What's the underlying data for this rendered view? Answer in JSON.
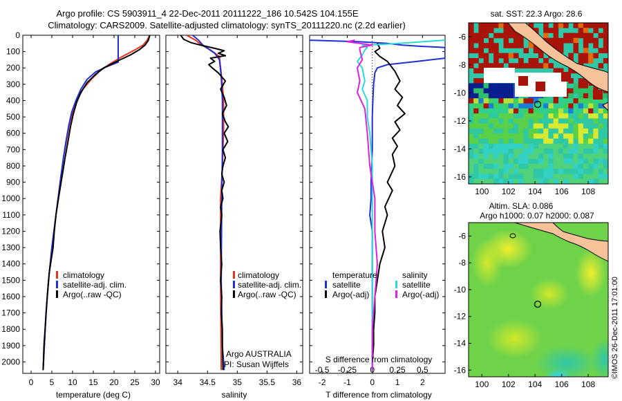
{
  "title": {
    "line1": "Argo profile: CS 5903911_4 22-Dec-2011 20111222_186 10.542S 104.155E",
    "line2": "Climatology: CARS2009. Satellite-adjusted climatology: synTS_20111220.nc (2.2d earlier)"
  },
  "colors": {
    "climatology": "#e8311e",
    "satellite": "#1f2fd6",
    "argo": "#000000",
    "sat_salinity": "#2ad8d8",
    "argo_salinity": "#e020e0",
    "land": "#f5c29a"
  },
  "chart_data": [
    {
      "type": "line",
      "xlabel": "temperature (deg C)",
      "ylabel": "",
      "xlim": [
        -2,
        31
      ],
      "ylim": [
        2070,
        0
      ],
      "xticks": [
        0,
        5,
        10,
        15,
        20,
        25,
        30
      ],
      "yticks": [
        0,
        100,
        200,
        300,
        400,
        500,
        600,
        700,
        800,
        900,
        1000,
        1100,
        1200,
        1300,
        1400,
        1500,
        1600,
        1700,
        1800,
        1900,
        2000
      ],
      "legend": [
        "climatology",
        "satellite-adj. clim.",
        "Argo(..raw -QC)"
      ],
      "legend_position": "lower-center",
      "series": [
        {
          "name": "climatology",
          "color": "climatology",
          "points": [
            [
              28.6,
              0
            ],
            [
              28,
              30
            ],
            [
              27,
              60
            ],
            [
              25,
              90
            ],
            [
              22,
              130
            ],
            [
              19,
              175
            ],
            [
              16.5,
              220
            ],
            [
              14.5,
              270
            ],
            [
              12.5,
              330
            ],
            [
              11,
              400
            ],
            [
              10,
              470
            ],
            [
              9.2,
              550
            ],
            [
              8.5,
              650
            ],
            [
              7.8,
              750
            ],
            [
              7,
              900
            ],
            [
              6,
              1100
            ],
            [
              5,
              1300
            ],
            [
              4.2,
              1500
            ],
            [
              3.6,
              1700
            ],
            [
              3.2,
              1900
            ],
            [
              2.9,
              2050
            ]
          ]
        },
        {
          "name": "satellite-adj. clim.",
          "color": "satellite",
          "points": [
            [
              21,
              0
            ],
            [
              21,
              165
            ],
            [
              18,
              195
            ],
            [
              15.5,
              225
            ],
            [
              13.5,
              270
            ],
            [
              12,
              330
            ],
            [
              10.8,
              400
            ],
            [
              9.8,
              470
            ],
            [
              9.1,
              550
            ],
            [
              8.4,
              650
            ],
            [
              7.8,
              750
            ],
            [
              7,
              900
            ],
            [
              6,
              1100
            ],
            [
              5,
              1300
            ],
            [
              4.2,
              1500
            ],
            [
              3.6,
              1700
            ],
            [
              3.2,
              1900
            ],
            [
              2.9,
              2050
            ]
          ]
        },
        {
          "name": "Argo(..raw -QC)",
          "color": "argo",
          "points": [
            [
              28.6,
              0
            ],
            [
              28.3,
              30
            ],
            [
              27.5,
              60
            ],
            [
              26,
              90
            ],
            [
              24,
              120
            ],
            [
              21.5,
              150
            ],
            [
              19.5,
              175
            ],
            [
              17.5,
              200
            ],
            [
              15.5,
              240
            ],
            [
              13.5,
              290
            ],
            [
              12,
              350
            ],
            [
              11,
              410
            ],
            [
              10.2,
              480
            ],
            [
              9.5,
              560
            ],
            [
              8.9,
              650
            ],
            [
              8.2,
              750
            ],
            [
              7.5,
              860
            ],
            [
              6.6,
              1000
            ],
            [
              6,
              1100
            ],
            [
              5.6,
              1200
            ],
            [
              5.3,
              1300
            ],
            [
              4.4,
              1450
            ],
            [
              3.9,
              1600
            ],
            [
              3.5,
              1750
            ],
            [
              3.1,
              1900
            ],
            [
              2.9,
              2050
            ]
          ]
        }
      ]
    },
    {
      "type": "line",
      "xlabel": "salinity",
      "xlim": [
        33.8,
        36.1
      ],
      "ylim": [
        2070,
        0
      ],
      "xticks": [
        34,
        34.5,
        35,
        35.5,
        36
      ],
      "xtick_labels": [
        "34",
        "34.5",
        "35",
        "35.5",
        "36"
      ],
      "legend": [
        "climatology",
        "satellite-adj. clim.",
        "Argo(..raw -QC)"
      ],
      "legend_position": "lower-right",
      "annotations": [
        "Argo AUSTRALIA",
        "PI: Susan Wijffels"
      ],
      "series": [
        {
          "name": "climatology",
          "color": "climatology",
          "points": [
            [
              34.15,
              0
            ],
            [
              34.3,
              30
            ],
            [
              34.4,
              60
            ],
            [
              34.55,
              90
            ],
            [
              34.7,
              130
            ],
            [
              34.72,
              200
            ],
            [
              34.75,
              300
            ],
            [
              34.77,
              400
            ],
            [
              34.77,
              600
            ],
            [
              34.75,
              800
            ],
            [
              34.72,
              1000
            ],
            [
              34.72,
              1500
            ],
            [
              34.73,
              2050
            ]
          ]
        },
        {
          "name": "satellite-adj. clim.",
          "color": "satellite",
          "points": [
            [
              34.25,
              0
            ],
            [
              34.35,
              30
            ],
            [
              34.42,
              60
            ],
            [
              34.52,
              85
            ],
            [
              34.62,
              110
            ],
            [
              34.7,
              150
            ],
            [
              34.73,
              250
            ],
            [
              34.75,
              400
            ],
            [
              34.75,
              700
            ],
            [
              34.74,
              1000
            ],
            [
              34.73,
              1500
            ],
            [
              34.75,
              1900
            ],
            [
              34.78,
              2050
            ]
          ]
        },
        {
          "name": "Argo(..raw -QC)",
          "color": "argo",
          "points": [
            [
              34.05,
              0
            ],
            [
              34.1,
              25
            ],
            [
              34.22,
              45
            ],
            [
              34.38,
              60
            ],
            [
              34.62,
              80
            ],
            [
              34.78,
              95
            ],
            [
              34.68,
              110
            ],
            [
              34.8,
              125
            ],
            [
              34.55,
              140
            ],
            [
              34.62,
              160
            ],
            [
              34.52,
              180
            ],
            [
              34.58,
              200
            ],
            [
              34.68,
              230
            ],
            [
              34.8,
              280
            ],
            [
              34.72,
              330
            ],
            [
              34.78,
              380
            ],
            [
              34.82,
              430
            ],
            [
              34.75,
              480
            ],
            [
              34.8,
              530
            ],
            [
              34.85,
              560
            ],
            [
              34.78,
              600
            ],
            [
              34.84,
              650
            ],
            [
              34.76,
              700
            ],
            [
              34.8,
              750
            ],
            [
              34.76,
              800
            ],
            [
              34.74,
              850
            ],
            [
              34.78,
              900
            ],
            [
              34.74,
              950
            ],
            [
              34.76,
              1000
            ],
            [
              34.72,
              1050
            ],
            [
              34.74,
              1100
            ],
            [
              34.71,
              1200
            ],
            [
              34.72,
              1300
            ],
            [
              34.74,
              1400
            ],
            [
              34.72,
              1500
            ],
            [
              34.74,
              1600
            ],
            [
              34.73,
              1700
            ],
            [
              34.75,
              1800
            ],
            [
              34.75,
              1900
            ],
            [
              34.76,
              2050
            ]
          ]
        }
      ]
    },
    {
      "type": "line",
      "xlabel": "T difference from climatology",
      "xlabel2": "S difference from climatology",
      "xlim": [
        -2.5,
        2.9
      ],
      "ylim": [
        2070,
        0
      ],
      "xticks": [
        -2,
        -1,
        0,
        1,
        2
      ],
      "xticks2": [
        -0.5,
        -0.25,
        0,
        0.25,
        0.5
      ],
      "legend_groups": [
        {
          "heading": "temperature",
          "items": [
            "satellite",
            "Argo(-adj)"
          ]
        },
        {
          "heading": "salinity",
          "items": [
            "satellite",
            "Argo(-adj)"
          ]
        }
      ],
      "series": [
        {
          "name": "temperature satellite",
          "color": "satellite",
          "points": [
            [
              -2.5,
              30
            ],
            [
              -1.5,
              35
            ],
            [
              -0.5,
              40
            ],
            [
              0.6,
              50
            ],
            [
              1.2,
              60
            ],
            [
              2,
              68
            ],
            [
              2.9,
              75
            ],
            [
              2.9,
              140
            ],
            [
              1.8,
              160
            ],
            [
              0.6,
              180
            ],
            [
              0.2,
              200
            ],
            [
              0.1,
              230
            ],
            [
              0.05,
              300
            ],
            [
              0.02,
              400
            ],
            [
              0,
              500
            ],
            [
              0,
              700
            ],
            [
              -0.05,
              900
            ],
            [
              -0.05,
              1000
            ],
            [
              -0.1,
              1100
            ],
            [
              0,
              1200
            ],
            [
              0,
              1400
            ],
            [
              0,
              1600
            ],
            [
              0,
              1800
            ],
            [
              0,
              2050
            ]
          ]
        },
        {
          "name": "temperature Argo(-adj)",
          "color": "argo",
          "points": [
            [
              0.2,
              50
            ],
            [
              0.3,
              80
            ],
            [
              0.1,
              100
            ],
            [
              0.3,
              130
            ],
            [
              0.6,
              160
            ],
            [
              0.9,
              220
            ],
            [
              1.1,
              280
            ],
            [
              0.9,
              330
            ],
            [
              1.2,
              380
            ],
            [
              1.0,
              430
            ],
            [
              1.3,
              480
            ],
            [
              0.9,
              530
            ],
            [
              1.1,
              580
            ],
            [
              0.8,
              630
            ],
            [
              1.0,
              680
            ],
            [
              0.8,
              730
            ],
            [
              0.9,
              800
            ],
            [
              0.6,
              900
            ],
            [
              0.8,
              950
            ],
            [
              0.5,
              1050
            ],
            [
              0.6,
              1100
            ],
            [
              0.4,
              1200
            ],
            [
              0.5,
              1300
            ],
            [
              0.3,
              1400
            ],
            [
              0.2,
              1500
            ],
            [
              0.1,
              1600
            ],
            [
              0.1,
              1700
            ],
            [
              0.05,
              1800
            ],
            [
              0.05,
              1900
            ],
            [
              0,
              2000
            ]
          ]
        },
        {
          "name": "salinity satellite",
          "color": "sat_salinity",
          "points": [
            [
              2.9,
              30
            ],
            [
              1.5,
              45
            ],
            [
              0.5,
              55
            ],
            [
              -0.4,
              62
            ],
            [
              -0.2,
              75
            ],
            [
              -0.3,
              90
            ],
            [
              -0.4,
              120
            ],
            [
              -0.6,
              160
            ],
            [
              -0.4,
              200
            ],
            [
              -0.3,
              280
            ],
            [
              -0.4,
              330
            ],
            [
              -0.2,
              400
            ],
            [
              -0.2,
              500
            ],
            [
              -0.1,
              600
            ],
            [
              0,
              800
            ],
            [
              0,
              1000
            ],
            [
              0,
              1200
            ],
            [
              0,
              1500
            ],
            [
              0,
              2050
            ]
          ]
        },
        {
          "name": "salinity Argo(-adj)",
          "color": "argo_salinity",
          "points": [
            [
              -0.7,
              30
            ],
            [
              -1.0,
              40
            ],
            [
              -0.5,
              50
            ],
            [
              0.0,
              60
            ],
            [
              -0.5,
              75
            ],
            [
              -0.5,
              90
            ],
            [
              -0.4,
              150
            ],
            [
              -0.6,
              200
            ],
            [
              -0.5,
              280
            ],
            [
              -0.6,
              350
            ],
            [
              -0.3,
              450
            ],
            [
              -0.2,
              600
            ],
            [
              -0.1,
              800
            ],
            [
              0.1,
              1000
            ],
            [
              0.1,
              1200
            ],
            [
              0.2,
              1400
            ],
            [
              0.1,
              1600
            ],
            [
              0,
              1800
            ],
            [
              0,
              2050
            ]
          ]
        }
      ]
    },
    {
      "type": "heatmap",
      "title": "sat. SST: 22.3 Argo: 28.6",
      "xlim": [
        99,
        109.5
      ],
      "ylim": [
        -16.5,
        -5
      ],
      "xticks": [
        100,
        102,
        104,
        106,
        108
      ],
      "yticks": [
        -6,
        -8,
        -10,
        -12,
        -14,
        -16
      ],
      "float_position": [
        104.155,
        -10.542
      ]
    },
    {
      "type": "heatmap",
      "title": "Altim. SLA: 0.086",
      "subtitle": "Argo h1000: 0.07 h2000: 0.087",
      "xlim": [
        99,
        109.5
      ],
      "ylim": [
        -16.5,
        -5
      ],
      "xticks": [
        100,
        102,
        104,
        106,
        108
      ],
      "yticks": [
        -6,
        -8,
        -10,
        -12,
        -14,
        -16
      ],
      "float_position": [
        104.155,
        -10.542
      ]
    }
  ],
  "credit": "©IMOS 26-Dec-2011 17:01:00"
}
